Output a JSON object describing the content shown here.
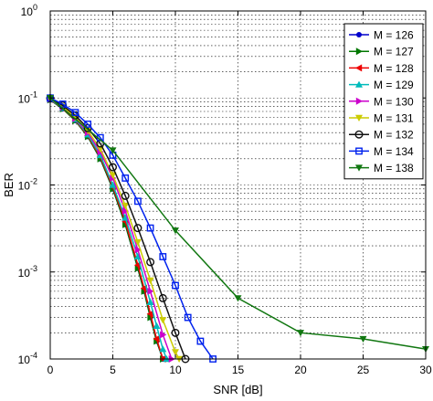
{
  "chart_data": {
    "type": "line",
    "xlabel": "SNR [dB]",
    "ylabel": "BER",
    "xlim": [
      0,
      30
    ],
    "ylim": [
      0.0001,
      1
    ],
    "yscale": "log",
    "grid": true,
    "legend_position": "top-right",
    "x_ticks": [
      "0",
      "5",
      "10",
      "15",
      "20",
      "25",
      "30"
    ],
    "y_ticks": [
      {
        "base": "10",
        "exp": "0",
        "value": 1
      },
      {
        "base": "10",
        "exp": "-1",
        "value": 0.1
      },
      {
        "base": "10",
        "exp": "-2",
        "value": 0.01
      },
      {
        "base": "10",
        "exp": "-3",
        "value": 0.001
      },
      {
        "base": "10",
        "exp": "-4",
        "value": 0.0001
      }
    ],
    "series": [
      {
        "name": "M = 126",
        "color": "#0000cc",
        "marker": "dot",
        "x": [
          0,
          1,
          2,
          3,
          4,
          5,
          6,
          7,
          7.5,
          8,
          8.5,
          9
        ],
        "y": [
          0.095,
          0.075,
          0.055,
          0.036,
          0.02,
          0.009,
          0.0035,
          0.0011,
          0.0006,
          0.0003,
          0.00016,
          0.0001
        ]
      },
      {
        "name": "M = 127",
        "color": "#007700",
        "marker": "triangle-right",
        "x": [
          0,
          1,
          2,
          3,
          4,
          5,
          6,
          7,
          7.5,
          8,
          8.5,
          9
        ],
        "y": [
          0.095,
          0.075,
          0.055,
          0.036,
          0.02,
          0.009,
          0.0035,
          0.0011,
          0.0006,
          0.0003,
          0.00016,
          0.0001
        ]
      },
      {
        "name": "M = 128",
        "color": "#ee0000",
        "marker": "triangle-left",
        "x": [
          0,
          1,
          2,
          3,
          4,
          5,
          6,
          7,
          7.5,
          8,
          8.5,
          9
        ],
        "y": [
          0.096,
          0.076,
          0.056,
          0.037,
          0.021,
          0.0095,
          0.0038,
          0.0012,
          0.00065,
          0.00033,
          0.00017,
          0.0001
        ]
      },
      {
        "name": "M = 129",
        "color": "#00bbbb",
        "marker": "triangle-up",
        "x": [
          0,
          1,
          2,
          3,
          4,
          5,
          6,
          7,
          8,
          8.5,
          9,
          9.3
        ],
        "y": [
          0.096,
          0.077,
          0.057,
          0.038,
          0.022,
          0.01,
          0.0042,
          0.0015,
          0.00045,
          0.00024,
          0.00013,
          0.0001
        ]
      },
      {
        "name": "M = 130",
        "color": "#cc00cc",
        "marker": "triangle-right",
        "x": [
          0,
          1,
          2,
          3,
          4,
          5,
          6,
          7,
          8,
          9,
          9.7
        ],
        "y": [
          0.097,
          0.078,
          0.058,
          0.04,
          0.024,
          0.012,
          0.005,
          0.0018,
          0.0006,
          0.00019,
          0.0001
        ]
      },
      {
        "name": "M = 131",
        "color": "#cccc00",
        "marker": "triangle-down",
        "x": [
          0,
          1,
          2,
          3,
          4,
          5,
          6,
          7,
          8,
          9,
          10,
          10.3
        ],
        "y": [
          0.098,
          0.08,
          0.06,
          0.042,
          0.026,
          0.013,
          0.0058,
          0.0022,
          0.0008,
          0.00028,
          0.00012,
          0.0001
        ]
      },
      {
        "name": "M = 132",
        "color": "#111111",
        "marker": "circle",
        "x": [
          0,
          1,
          2,
          3,
          4,
          5,
          6,
          7,
          8,
          9,
          10,
          10.8
        ],
        "y": [
          0.099,
          0.082,
          0.063,
          0.045,
          0.03,
          0.016,
          0.0075,
          0.0032,
          0.0013,
          0.0005,
          0.0002,
          0.0001
        ]
      },
      {
        "name": "M = 134",
        "color": "#0022ee",
        "marker": "square",
        "x": [
          0,
          1,
          2,
          3,
          4,
          5,
          6,
          7,
          8,
          9,
          10,
          11,
          12,
          13
        ],
        "y": [
          0.1,
          0.085,
          0.068,
          0.05,
          0.035,
          0.022,
          0.012,
          0.0065,
          0.0032,
          0.0015,
          0.0007,
          0.0003,
          0.00016,
          0.0001
        ]
      },
      {
        "name": "M = 138",
        "color": "#117711",
        "marker": "triangle-down",
        "x": [
          0,
          5,
          10,
          15,
          20,
          25,
          30
        ],
        "y": [
          0.1,
          0.025,
          0.003,
          0.0005,
          0.0002,
          0.00017,
          0.00013
        ]
      }
    ]
  }
}
